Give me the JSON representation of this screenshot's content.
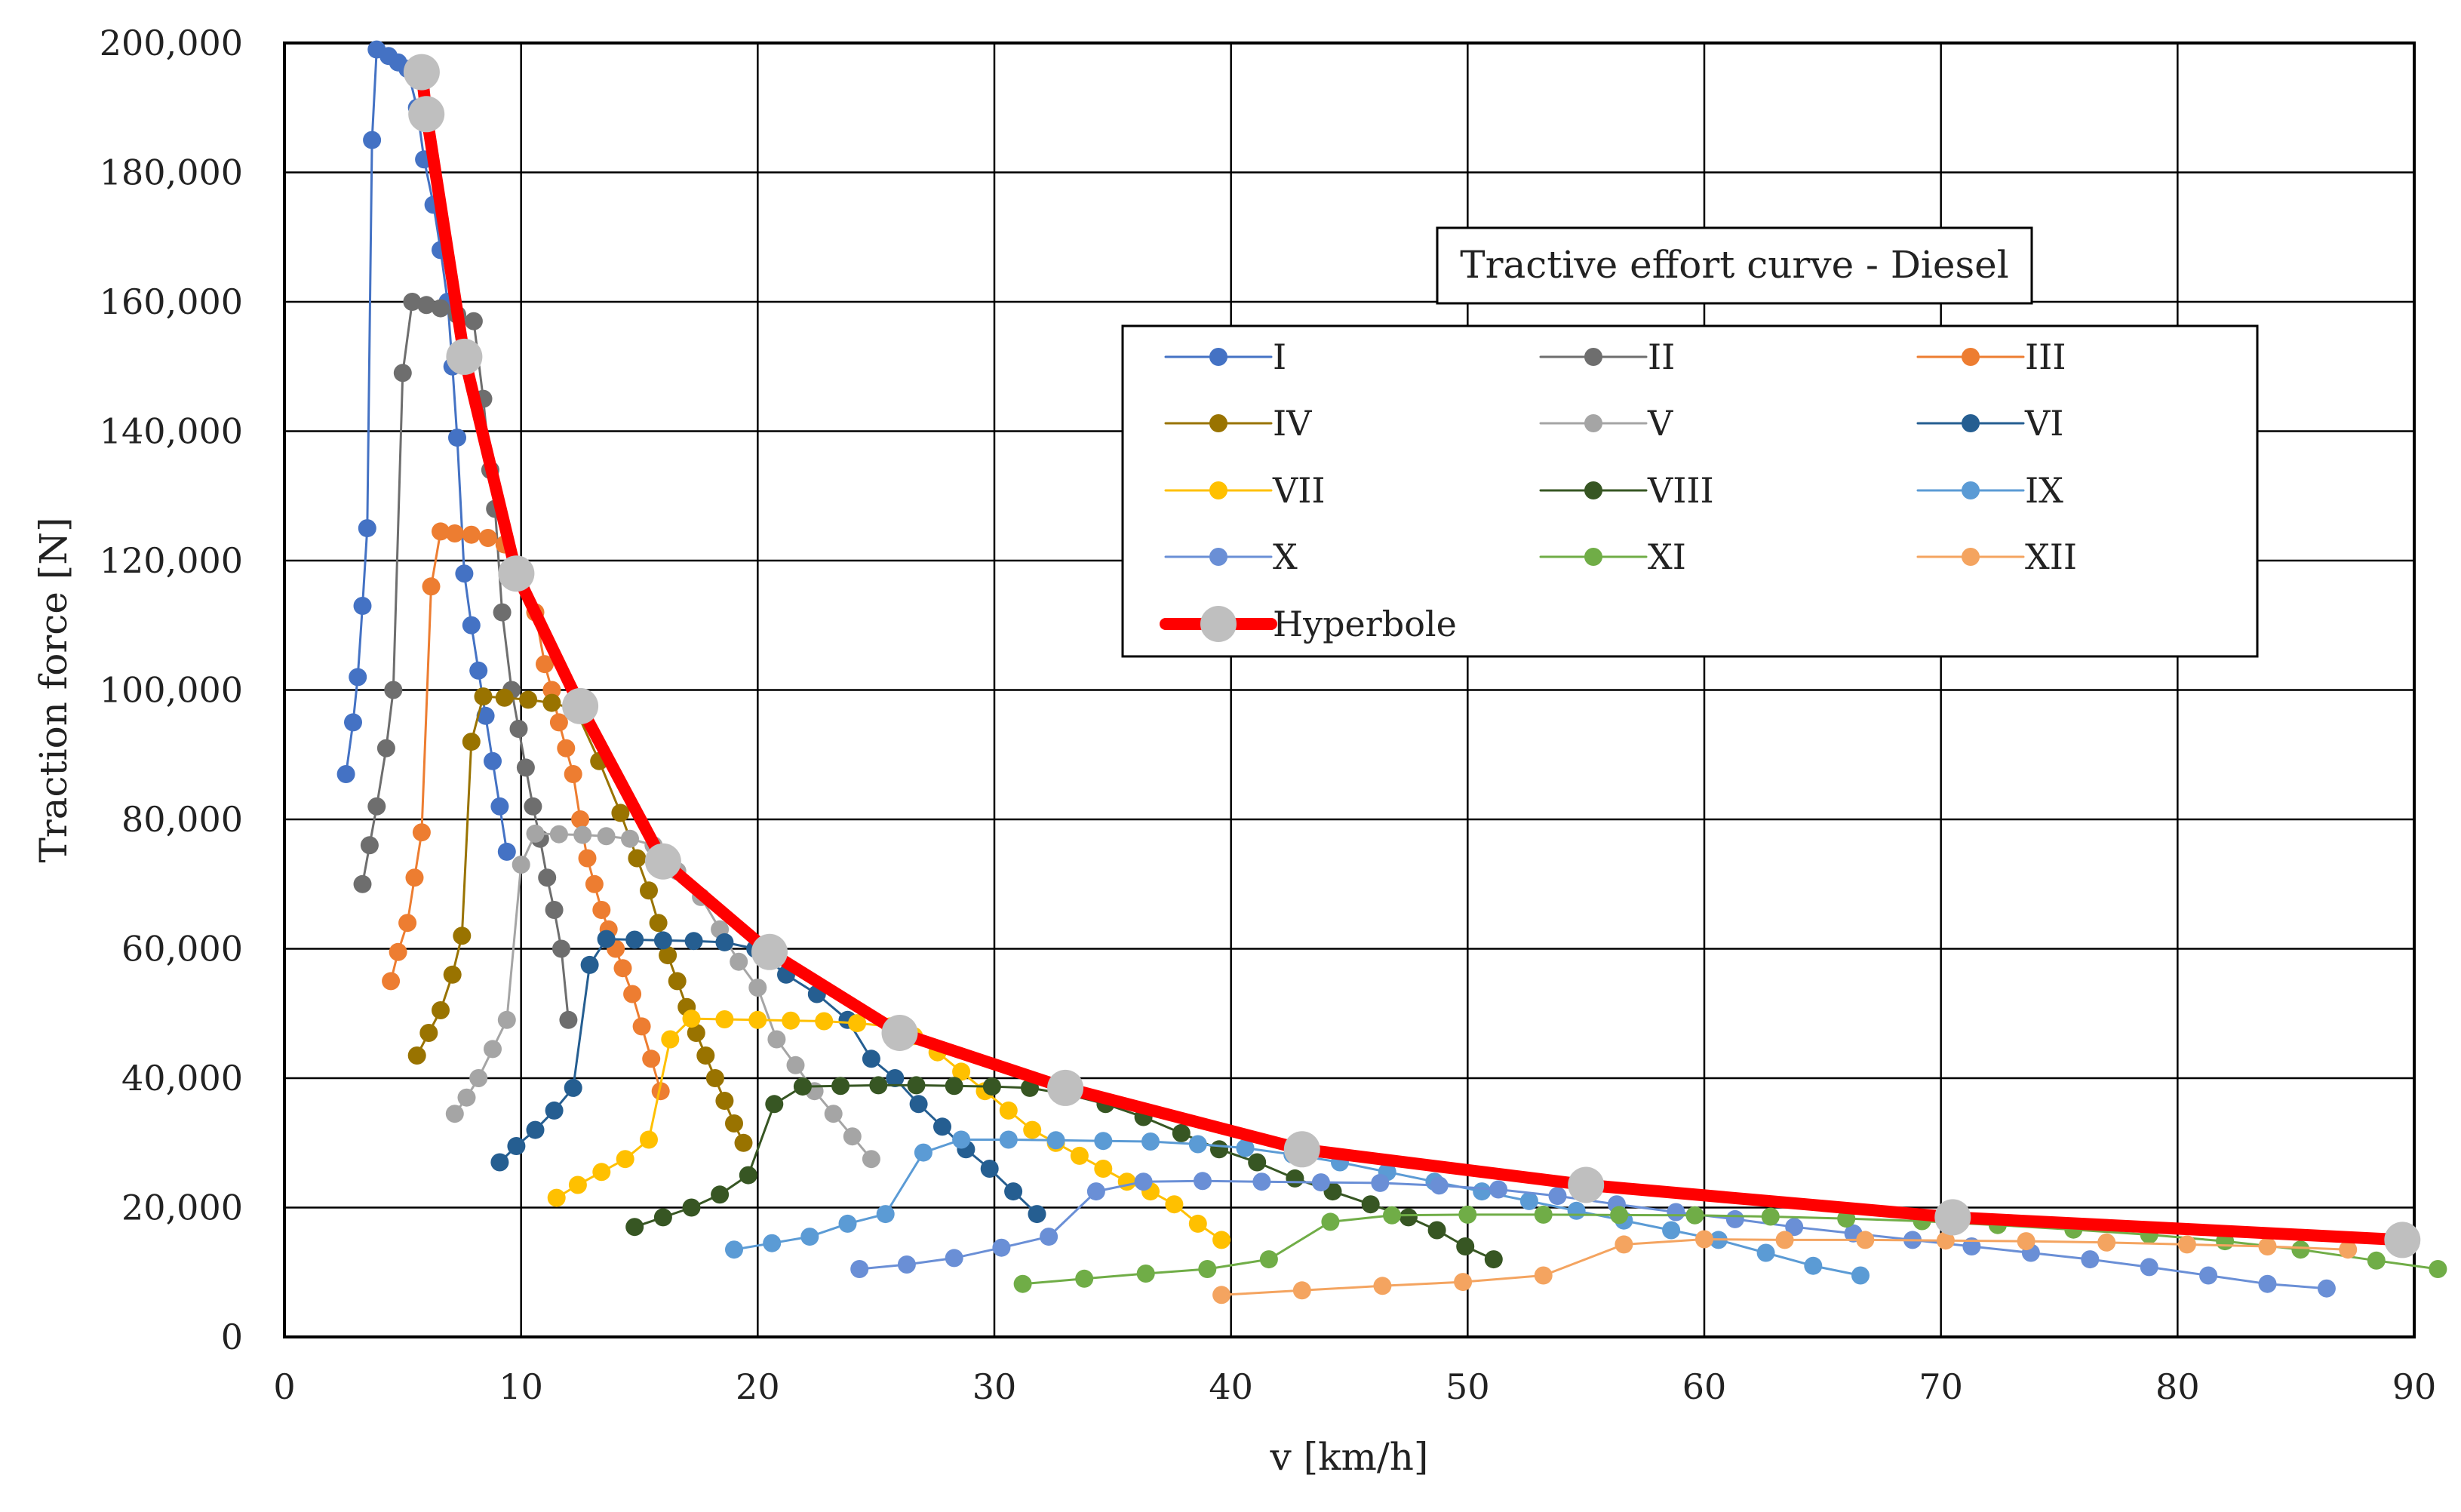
{
  "chart_data": {
    "type": "line",
    "title": "Tractive effort curve - Diesel",
    "xlabel": "v [km/h]",
    "ylabel": "Traction force [N]",
    "xlim": [
      0,
      90
    ],
    "ylim": [
      0,
      200000
    ],
    "grid": true,
    "legend_position": "upper-right",
    "x_ticks": [
      "0",
      "10",
      "20",
      "30",
      "40",
      "50",
      "60",
      "70",
      "80",
      "90"
    ],
    "y_ticks": [
      "0",
      "20,000",
      "40,000",
      "60,000",
      "80,000",
      "100,000",
      "120,000",
      "140,000",
      "160,000",
      "180,000",
      "200,000"
    ],
    "series": [
      {
        "name": "I",
        "color": "#4472C4",
        "line_width": 3,
        "marker": 12,
        "x": [
          2.6,
          2.9,
          3.1,
          3.3,
          3.5,
          3.7,
          3.9,
          4.4,
          4.8,
          5.2,
          5.6,
          5.9,
          6.3,
          6.6,
          6.9,
          7.1,
          7.3,
          7.6,
          7.9,
          8.2,
          8.5,
          8.8,
          9.1,
          9.4
        ],
        "y": [
          87000,
          95000,
          102000,
          113000,
          125000,
          185000,
          199000,
          198000,
          197000,
          196000,
          190000,
          182000,
          175000,
          168000,
          160000,
          150000,
          139000,
          118000,
          110000,
          103000,
          96000,
          89000,
          82000,
          75000
        ]
      },
      {
        "name": "II",
        "color": "#6E6E6E",
        "line_width": 3,
        "marker": 12,
        "x": [
          3.3,
          3.6,
          3.9,
          4.3,
          4.6,
          5.0,
          5.4,
          6.0,
          6.6,
          7.3,
          8.0,
          8.4,
          8.7,
          8.9,
          9.2,
          9.6,
          9.9,
          10.2,
          10.5,
          10.8,
          11.1,
          11.4,
          11.7,
          12.0
        ],
        "y": [
          70000,
          76000,
          82000,
          91000,
          100000,
          149000,
          160000,
          159500,
          159000,
          158000,
          157000,
          145000,
          134000,
          128000,
          112000,
          100000,
          94000,
          88000,
          82000,
          77000,
          71000,
          66000,
          60000,
          49000
        ]
      },
      {
        "name": "III",
        "color": "#ED7D31",
        "line_width": 3,
        "marker": 12,
        "x": [
          4.5,
          4.8,
          5.2,
          5.5,
          5.8,
          6.2,
          6.6,
          7.2,
          7.9,
          8.6,
          9.3,
          10.0,
          10.6,
          11.0,
          11.3,
          11.6,
          11.9,
          12.2,
          12.5,
          12.8,
          13.1,
          13.4,
          13.7,
          14.0,
          14.3,
          14.7,
          15.1,
          15.5,
          15.9
        ],
        "y": [
          55000,
          59500,
          64000,
          71000,
          78000,
          116000,
          124500,
          124200,
          124000,
          123500,
          122500,
          118000,
          112000,
          104000,
          100000,
          95000,
          91000,
          87000,
          80000,
          74000,
          70000,
          66000,
          63000,
          60000,
          57000,
          53000,
          48000,
          43000,
          38000
        ]
      },
      {
        "name": "IV",
        "color": "#997300",
        "line_width": 3,
        "marker": 12,
        "x": [
          5.6,
          6.1,
          6.6,
          7.1,
          7.5,
          7.9,
          8.4,
          9.3,
          10.3,
          11.3,
          12.3,
          13.3,
          14.2,
          14.9,
          15.4,
          15.8,
          16.2,
          16.6,
          17.0,
          17.4,
          17.8,
          18.2,
          18.6,
          19.0,
          19.4
        ],
        "y": [
          43500,
          47000,
          50500,
          56000,
          62000,
          92000,
          99000,
          98800,
          98500,
          98000,
          97000,
          89000,
          81000,
          74000,
          69000,
          64000,
          59000,
          55000,
          51000,
          47000,
          43500,
          40000,
          36500,
          33000,
          30000
        ]
      },
      {
        "name": "V",
        "color": "#A5A5A5",
        "line_width": 3,
        "marker": 12,
        "x": [
          7.2,
          7.7,
          8.2,
          8.8,
          9.4,
          10.0,
          10.6,
          11.6,
          12.6,
          13.6,
          14.6,
          15.6,
          16.6,
          17.6,
          18.4,
          19.2,
          20.0,
          20.8,
          21.6,
          22.4,
          23.2,
          24.0,
          24.8
        ],
        "y": [
          34500,
          37000,
          40000,
          44500,
          49000,
          73000,
          77800,
          77700,
          77600,
          77400,
          77000,
          76000,
          72000,
          68000,
          63000,
          58000,
          54000,
          46000,
          42000,
          38000,
          34500,
          31000,
          27500
        ]
      },
      {
        "name": "VI",
        "color": "#255E91",
        "line_width": 3,
        "marker": 12,
        "x": [
          9.1,
          9.8,
          10.6,
          11.4,
          12.2,
          12.9,
          13.6,
          14.8,
          16.0,
          17.3,
          18.6,
          19.9,
          21.2,
          22.5,
          23.8,
          24.8,
          25.8,
          26.8,
          27.8,
          28.8,
          29.8,
          30.8,
          31.8
        ],
        "y": [
          27000,
          29500,
          32000,
          35000,
          38500,
          57500,
          61500,
          61400,
          61300,
          61200,
          61000,
          60000,
          56000,
          53000,
          49000,
          43000,
          40000,
          36000,
          32500,
          29000,
          26000,
          22500,
          19000
        ]
      },
      {
        "name": "VII",
        "color": "#FFC000",
        "line_width": 3,
        "marker": 12,
        "x": [
          11.5,
          12.4,
          13.4,
          14.4,
          15.4,
          16.3,
          17.2,
          18.6,
          20.0,
          21.4,
          22.8,
          24.2,
          25.6,
          26.6,
          27.6,
          28.6,
          29.6,
          30.6,
          31.6,
          32.6,
          33.6,
          34.6,
          35.6,
          36.6,
          37.6,
          38.6,
          39.6
        ],
        "y": [
          21500,
          23500,
          25500,
          27500,
          30500,
          46000,
          49200,
          49100,
          49000,
          48900,
          48800,
          48500,
          48000,
          46500,
          44000,
          41000,
          38000,
          35000,
          32000,
          30000,
          28000,
          26000,
          24000,
          22500,
          20500,
          17500,
          15000
        ]
      },
      {
        "name": "VIII",
        "color": "#375623",
        "line_width": 3,
        "marker": 12,
        "x": [
          14.8,
          16.0,
          17.2,
          18.4,
          19.6,
          20.7,
          21.9,
          23.5,
          25.1,
          26.7,
          28.3,
          29.9,
          31.5,
          33.1,
          34.7,
          36.3,
          37.9,
          39.5,
          41.1,
          42.7,
          44.3,
          45.9,
          47.5,
          48.7,
          49.9,
          51.1
        ],
        "y": [
          17000,
          18500,
          20000,
          22000,
          25000,
          36000,
          38700,
          38800,
          38900,
          38900,
          38800,
          38700,
          38500,
          37500,
          36000,
          34000,
          31500,
          29000,
          27000,
          24500,
          22500,
          20500,
          18500,
          16500,
          14000,
          12000
        ]
      },
      {
        "name": "IX",
        "color": "#5B9BD5",
        "line_width": 3,
        "marker": 12,
        "x": [
          19.0,
          20.6,
          22.2,
          23.8,
          25.4,
          27.0,
          28.6,
          30.6,
          32.6,
          34.6,
          36.6,
          38.6,
          40.6,
          42.6,
          44.6,
          46.6,
          48.6,
          50.6,
          52.6,
          54.6,
          56.6,
          58.6,
          60.6,
          62.6,
          64.6,
          66.6
        ],
        "y": [
          13500,
          14500,
          15500,
          17500,
          19000,
          28500,
          30500,
          30500,
          30400,
          30300,
          30200,
          29800,
          29200,
          28200,
          27000,
          25500,
          24000,
          22500,
          21000,
          19500,
          18000,
          16500,
          15000,
          13000,
          11000,
          9500
        ]
      },
      {
        "name": "X",
        "color": "#6A8FD6",
        "line_width": 3,
        "marker": 12,
        "x": [
          24.3,
          26.3,
          28.3,
          30.3,
          32.3,
          34.3,
          36.3,
          38.8,
          41.3,
          43.8,
          46.3,
          48.8,
          51.3,
          53.8,
          56.3,
          58.8,
          61.3,
          63.8,
          66.3,
          68.8,
          71.3,
          73.8,
          76.3,
          78.8,
          81.3,
          83.8,
          86.3
        ],
        "y": [
          10500,
          11200,
          12200,
          13800,
          15500,
          22500,
          24000,
          24100,
          24000,
          23900,
          23800,
          23400,
          22800,
          21800,
          20500,
          19300,
          18200,
          17000,
          16000,
          15000,
          14000,
          13000,
          12000,
          10800,
          9500,
          8200,
          7500
        ]
      },
      {
        "name": "XI",
        "color": "#70AD47",
        "line_width": 3,
        "marker": 12,
        "x": [
          31.2,
          33.8,
          36.4,
          39.0,
          41.6,
          44.2,
          46.8,
          50.0,
          53.2,
          56.4,
          59.6,
          62.8,
          66.0,
          69.2,
          72.4,
          75.6,
          78.8,
          82.0,
          85.2,
          88.4,
          91.0
        ],
        "y": [
          8200,
          9000,
          9800,
          10500,
          12000,
          17800,
          18800,
          18900,
          18900,
          18850,
          18800,
          18600,
          18300,
          17900,
          17300,
          16600,
          15800,
          14800,
          13500,
          11800,
          10500
        ]
      },
      {
        "name": "XII",
        "color": "#F4A460",
        "line_width": 3,
        "marker": 12,
        "x": [
          39.6,
          43.0,
          46.4,
          49.8,
          53.2,
          56.6,
          60.0,
          63.4,
          66.8,
          70.2,
          73.6,
          77.0,
          80.4,
          83.8,
          87.2
        ],
        "y": [
          6500,
          7200,
          7900,
          8500,
          9500,
          14300,
          15100,
          15000,
          15000,
          14900,
          14800,
          14600,
          14300,
          14000,
          13500
        ]
      },
      {
        "name": "Hyperbole",
        "color": "#FF0000",
        "line_width": 16,
        "marker": 24,
        "marker_color": "#BFBFBF",
        "x": [
          5.8,
          6.0,
          7.6,
          9.8,
          12.5,
          16.0,
          20.5,
          26.0,
          33.0,
          43.0,
          55.0,
          70.5,
          89.5
        ],
        "y": [
          195500,
          189000,
          151500,
          118000,
          97500,
          73500,
          59500,
          47000,
          38500,
          29000,
          23500,
          18500,
          15000
        ],
        "marker_x": [
          5.8,
          6.0,
          7.6,
          9.8,
          12.5,
          16.0,
          20.5,
          26.0,
          33.0,
          43.0,
          55.0,
          70.5,
          89.5
        ],
        "marker_y": [
          195500,
          189000,
          151500,
          118000,
          97500,
          73500,
          59500,
          47000,
          38500,
          29000,
          23500,
          18500,
          15000
        ]
      }
    ]
  }
}
